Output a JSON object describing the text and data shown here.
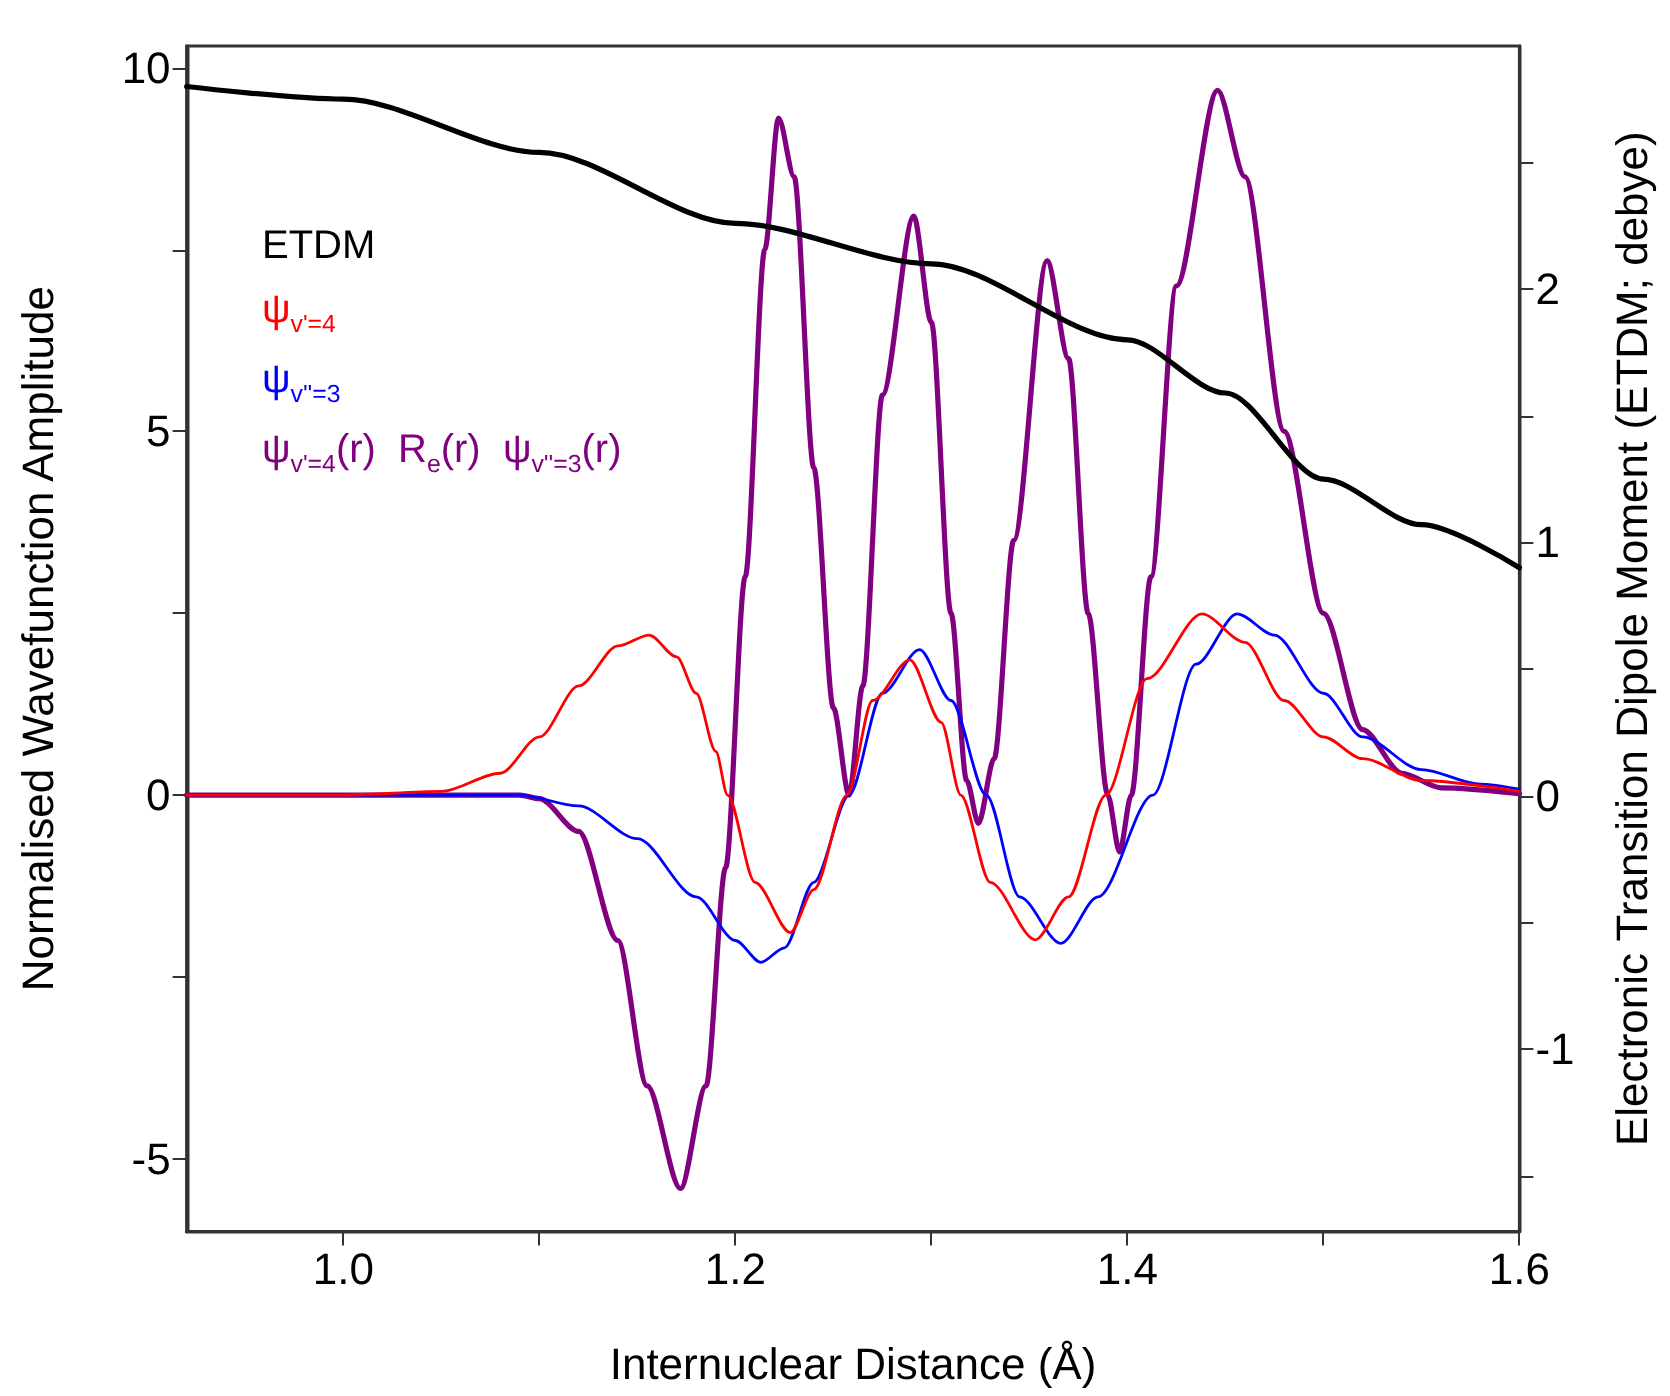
{
  "chart_data": {
    "type": "line",
    "xlabel": "Internuclear Distance (Å)",
    "ylabel": "Normalised Wavefunction Amplitude",
    "y2label": "Electronic Transition Dipole Moment (ETDM; debye)",
    "xlim": [
      0.92,
      1.6
    ],
    "xticks": [
      {
        "value": 1.0,
        "label": "1.0"
      },
      {
        "value": 1.1,
        "label": null
      },
      {
        "value": 1.2,
        "label": "1.2"
      },
      {
        "value": 1.3,
        "label": null
      },
      {
        "value": 1.4,
        "label": "1.4"
      },
      {
        "value": 1.5,
        "label": null
      },
      {
        "value": 1.6,
        "label": "1.6"
      }
    ],
    "ylim": [
      -6,
      10.3
    ],
    "yticks": [
      -5,
      {
        "value": -2.5,
        "label": null
      },
      0,
      {
        "value": 2.5,
        "label": null
      },
      5,
      {
        "value": 7.5,
        "label": null
      },
      10
    ],
    "y2lim": [
      -1.72,
      2.96
    ],
    "y2ticks": [
      {
        "value": -1.5,
        "label": null
      },
      -1,
      {
        "value": -0.5,
        "label": null
      },
      0,
      {
        "value": 0.5,
        "label": null
      },
      1,
      {
        "value": 1.5,
        "label": null
      },
      2,
      {
        "value": 2.5,
        "label": null
      }
    ],
    "grid": false,
    "legend": "top left",
    "marker": "none",
    "line_style": "solid",
    "series": [
      {
        "name": "ETDM",
        "color": "#000000",
        "axis": "y2",
        "x": [
          0.92,
          1.0,
          1.1,
          1.2,
          1.3,
          1.4,
          1.45,
          1.5,
          1.55,
          1.6
        ],
        "values": [
          2.8,
          2.75,
          2.54,
          2.26,
          2.1,
          1.8,
          1.59,
          1.25,
          1.07,
          0.9
        ]
      },
      {
        "name": "ψ$_{v'=4}$",
        "color": "#ff0000",
        "x": [
          0.92,
          1.0,
          1.05,
          1.08,
          1.1,
          1.12,
          1.14,
          1.156,
          1.17,
          1.18,
          1.19,
          1.196,
          1.21,
          1.228,
          1.24,
          1.257,
          1.27,
          1.289,
          1.305,
          1.315,
          1.33,
          1.353,
          1.37,
          1.389,
          1.41,
          1.438,
          1.46,
          1.48,
          1.5,
          1.52,
          1.55,
          1.6
        ],
        "values": [
          0,
          0,
          0.05,
          0.3,
          0.8,
          1.5,
          2.05,
          2.2,
          1.9,
          1.4,
          0.6,
          0,
          -1.2,
          -1.89,
          -1.3,
          0,
          1.3,
          1.86,
          1,
          0,
          -1.2,
          -1.99,
          -1.4,
          0,
          1.6,
          2.49,
          2.1,
          1.3,
          0.8,
          0.5,
          0.2,
          0.05
        ]
      },
      {
        "name": "ψ$_{v''=3}$",
        "color": "#0000ff",
        "x": [
          0.92,
          1.09,
          1.12,
          1.15,
          1.18,
          1.2,
          1.213,
          1.225,
          1.24,
          1.258,
          1.275,
          1.294,
          1.31,
          1.328,
          1.345,
          1.366,
          1.385,
          1.413,
          1.435,
          1.456,
          1.475,
          1.5,
          1.52,
          1.55,
          1.58,
          1.6
        ],
        "values": [
          0,
          0,
          -0.15,
          -0.6,
          -1.4,
          -2.0,
          -2.3,
          -2.1,
          -1.2,
          0,
          1.4,
          2.0,
          1.3,
          0,
          -1.4,
          -2.04,
          -1.4,
          0,
          1.8,
          2.49,
          2.2,
          1.4,
          0.8,
          0.35,
          0.15,
          0.08
        ]
      },
      {
        "name": "ψ$_{v'=4}$(r)  R$_{e}$(r)  ψ$_{v''=3}$(r)",
        "color": "#800080",
        "x": [
          0.92,
          1.09,
          1.1,
          1.12,
          1.14,
          1.155,
          1.172,
          1.185,
          1.195,
          1.205,
          1.215,
          1.222,
          1.23,
          1.24,
          1.25,
          1.258,
          1.265,
          1.275,
          1.291,
          1.3,
          1.31,
          1.318,
          1.324,
          1.332,
          1.342,
          1.359,
          1.37,
          1.38,
          1.39,
          1.396,
          1.402,
          1.412,
          1.425,
          1.446,
          1.46,
          1.48,
          1.5,
          1.52,
          1.54,
          1.56,
          1.6
        ],
        "values": [
          0,
          0,
          -0.05,
          -0.5,
          -2,
          -4,
          -5.41,
          -4,
          -1,
          3,
          7.5,
          9.31,
          8.5,
          4.5,
          1.2,
          0,
          1.5,
          5.5,
          7.96,
          6.5,
          2.5,
          0.2,
          -0.39,
          0.5,
          3.5,
          7.35,
          6,
          2.5,
          0,
          -0.78,
          0,
          3,
          7,
          9.69,
          8.5,
          5,
          2.5,
          0.9,
          0.3,
          0.1,
          0.02
        ]
      }
    ]
  }
}
